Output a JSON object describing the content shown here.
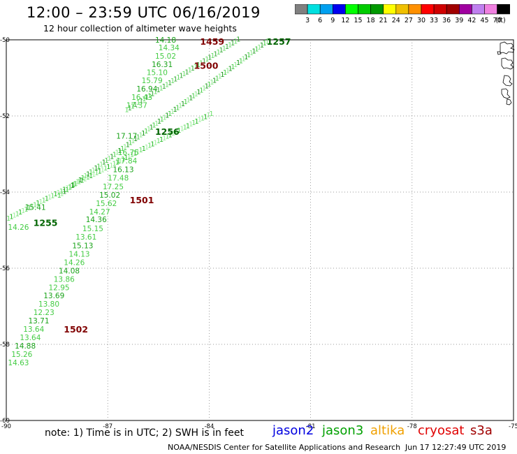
{
  "title": "12:00 – 23:59 UTC 06/16/2019",
  "subtitle": "12 hour collection of altimeter wave heights",
  "colorbar": {
    "unit": "(ft)",
    "colors": [
      "#808080",
      "#00e0e0",
      "#00a0f0",
      "#0000f0",
      "#00ff00",
      "#00cc00",
      "#009900",
      "#ffff00",
      "#f0c000",
      "#ff9000",
      "#ff0000",
      "#d00000",
      "#a00000",
      "#a000a0",
      "#c080f0",
      "#f080e0",
      "#000000"
    ],
    "labels": [
      "3",
      "6",
      "9",
      "12",
      "15",
      "18",
      "21",
      "24",
      "27",
      "30",
      "33",
      "36",
      "39",
      "42",
      "45",
      "70"
    ]
  },
  "map": {
    "lon_ticks": [
      "-90",
      "-87",
      "-84",
      "-81",
      "-78",
      "-75"
    ],
    "lat_ticks": [
      "-50",
      "-52",
      "-54",
      "-56",
      "-58",
      "-60"
    ],
    "time_labels": [
      {
        "text": "1459",
        "lon": -84.27,
        "lat": -50.04,
        "color": "#800000"
      },
      {
        "text": "1257",
        "lon": -82.3,
        "lat": -50.04,
        "color": "#006400"
      },
      {
        "text": "1500",
        "lon": -84.45,
        "lat": -50.67,
        "color": "#800000"
      },
      {
        "text": "1256",
        "lon": -85.6,
        "lat": -52.4,
        "color": "#006400"
      },
      {
        "text": "1501",
        "lon": -86.35,
        "lat": -54.2,
        "color": "#800000"
      },
      {
        "text": "1255",
        "lon": -89.2,
        "lat": -54.8,
        "color": "#006400"
      },
      {
        "text": "1502",
        "lon": -88.3,
        "lat": -57.6,
        "color": "#800000"
      }
    ],
    "swh_labels": [
      {
        "text": "14.18",
        "lon": -85.6,
        "lat": -50.0
      },
      {
        "text": "14.34",
        "lon": -85.5,
        "lat": -50.2
      },
      {
        "text": "15.02",
        "lon": -85.6,
        "lat": -50.42
      },
      {
        "text": "16.31",
        "lon": -85.7,
        "lat": -50.64
      },
      {
        "text": "15.10",
        "lon": -85.85,
        "lat": -50.85
      },
      {
        "text": "15.79",
        "lon": -86.0,
        "lat": -51.06
      },
      {
        "text": "16.94",
        "lon": -86.15,
        "lat": -51.28
      },
      {
        "text": "16.43",
        "lon": -86.3,
        "lat": -51.5
      },
      {
        "text": "17.37",
        "lon": -86.45,
        "lat": -51.72
      },
      {
        "text": "17.17",
        "lon": -86.75,
        "lat": -52.52
      },
      {
        "text": "16.75",
        "lon": -86.7,
        "lat": -52.95
      },
      {
        "text": "17.84",
        "lon": -86.75,
        "lat": -53.17
      },
      {
        "text": "16.13",
        "lon": -86.85,
        "lat": -53.4
      },
      {
        "text": "17.48",
        "lon": -87.0,
        "lat": -53.62
      },
      {
        "text": "17.25",
        "lon": -87.15,
        "lat": -53.85
      },
      {
        "text": "15.02",
        "lon": -87.25,
        "lat": -54.07
      },
      {
        "text": "15.62",
        "lon": -87.35,
        "lat": -54.29
      },
      {
        "text": "14.27",
        "lon": -87.55,
        "lat": -54.51
      },
      {
        "text": "14.36",
        "lon": -87.65,
        "lat": -54.72
      },
      {
        "text": "15.15",
        "lon": -87.75,
        "lat": -54.95
      },
      {
        "text": "13.61",
        "lon": -87.95,
        "lat": -55.17
      },
      {
        "text": "15.13",
        "lon": -88.05,
        "lat": -55.4
      },
      {
        "text": "14.13",
        "lon": -88.15,
        "lat": -55.62
      },
      {
        "text": "14.26",
        "lon": -88.3,
        "lat": -55.84
      },
      {
        "text": "14.08",
        "lon": -88.45,
        "lat": -56.06
      },
      {
        "text": "13.86",
        "lon": -88.6,
        "lat": -56.28
      },
      {
        "text": "12.95",
        "lon": -88.75,
        "lat": -56.5
      },
      {
        "text": "13.69",
        "lon": -88.9,
        "lat": -56.72
      },
      {
        "text": "13.80",
        "lon": -89.05,
        "lat": -56.94
      },
      {
        "text": "12.23",
        "lon": -89.2,
        "lat": -57.16
      },
      {
        "text": "13.71",
        "lon": -89.35,
        "lat": -57.38
      },
      {
        "text": "13.64",
        "lon": -89.5,
        "lat": -57.6
      },
      {
        "text": "13.64",
        "lon": -89.6,
        "lat": -57.82
      },
      {
        "text": "14.88",
        "lon": -89.75,
        "lat": -58.04
      },
      {
        "text": "15.26",
        "lon": -89.85,
        "lat": -58.26
      },
      {
        "text": "14.63",
        "lon": -89.95,
        "lat": -58.48
      },
      {
        "text": "15.41",
        "lon": -89.45,
        "lat": -54.39
      },
      {
        "text": "14.26",
        "lon": -89.95,
        "lat": -54.92
      }
    ]
  },
  "footer": {
    "note": "note:  1) Time is in UTC;  2) SWH is in feet",
    "satellites": [
      {
        "name": "jason2",
        "color": "#0000e0"
      },
      {
        "name": "jason3",
        "color": "#00a000"
      },
      {
        "name": "altika",
        "color": "#f0a000"
      },
      {
        "name": "cryosat",
        "color": "#e00000"
      },
      {
        "name": "s3a",
        "color": "#a00000"
      }
    ],
    "credit": "NOAA/NESDIS Center for Satellite Applications and Research",
    "timestamp": "Jun 17 12:27:49 UTC 2019"
  }
}
